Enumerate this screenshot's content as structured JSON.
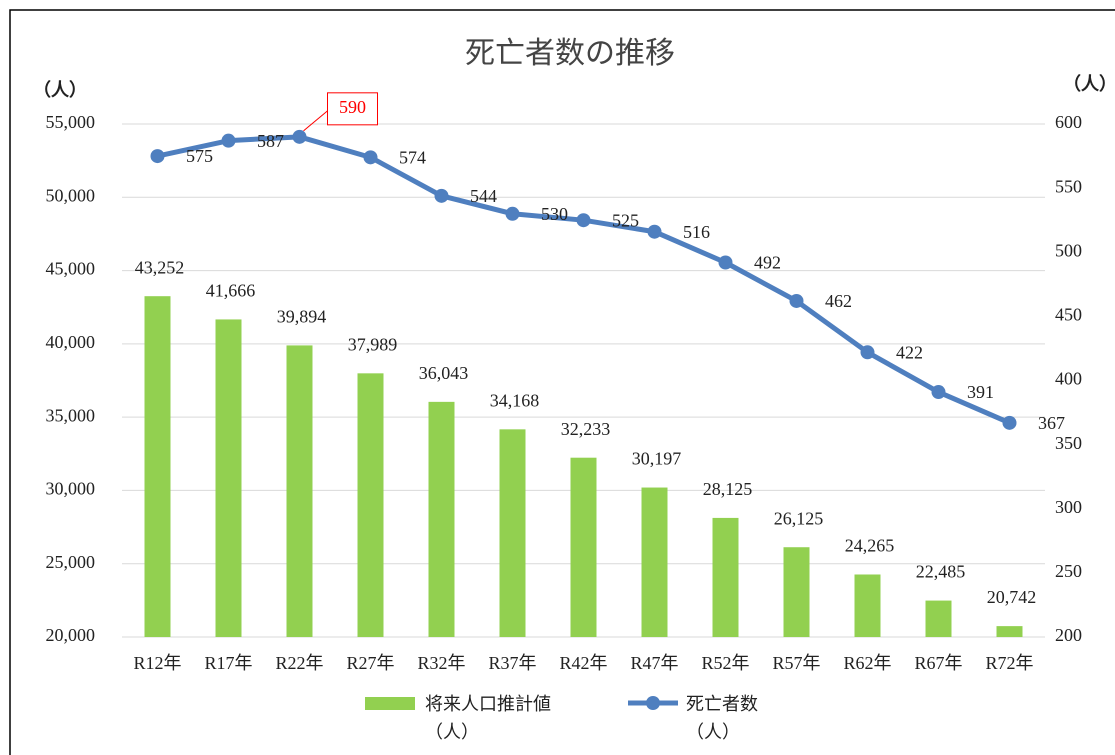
{
  "chart_data": {
    "type": "bar_line",
    "title": "死亡者数の推移",
    "y_label": "（人）",
    "y2_label": "（人）",
    "categories": [
      "R12年",
      "R17年",
      "R22年",
      "R27年",
      "R32年",
      "R37年",
      "R42年",
      "R47年",
      "R52年",
      "R57年",
      "R62年",
      "R67年",
      "R72年"
    ],
    "series": [
      {
        "name": "将来人口推計値（人）",
        "type": "bar",
        "color": "#92d050",
        "values": [
          43252,
          41666,
          39894,
          37989,
          36043,
          34168,
          32233,
          30197,
          28125,
          26125,
          24265,
          22485,
          20742
        ],
        "value_labels": [
          "43,252",
          "41,666",
          "39,894",
          "37,989",
          "36,043",
          "34,168",
          "32,233",
          "30,197",
          "28,125",
          "26,125",
          "24,265",
          "22,485",
          "20,742"
        ]
      },
      {
        "name": "死亡者数（人）",
        "type": "line",
        "axis": "y2",
        "color": "#4f7fbf",
        "values": [
          575,
          587,
          590,
          574,
          544,
          530,
          525,
          516,
          492,
          462,
          422,
          391,
          367
        ]
      }
    ],
    "highlight": {
      "series": 1,
      "index": 2,
      "color": "#ff0000"
    },
    "ylim": [
      20000,
      55000
    ],
    "yticks": [
      {
        "value": 20000,
        "label": "20,000"
      },
      {
        "value": 25000,
        "label": "25,000"
      },
      {
        "value": 30000,
        "label": "30,000"
      },
      {
        "value": 35000,
        "label": "35,000"
      },
      {
        "value": 40000,
        "label": "40,000"
      },
      {
        "value": 45000,
        "label": "45,000"
      },
      {
        "value": 50000,
        "label": "50,000"
      },
      {
        "value": 55000,
        "label": "55,000"
      }
    ],
    "y2lim": [
      200,
      600
    ],
    "y2ticks": [
      200,
      250,
      300,
      350,
      400,
      450,
      500,
      550,
      600
    ],
    "grid": true
  }
}
